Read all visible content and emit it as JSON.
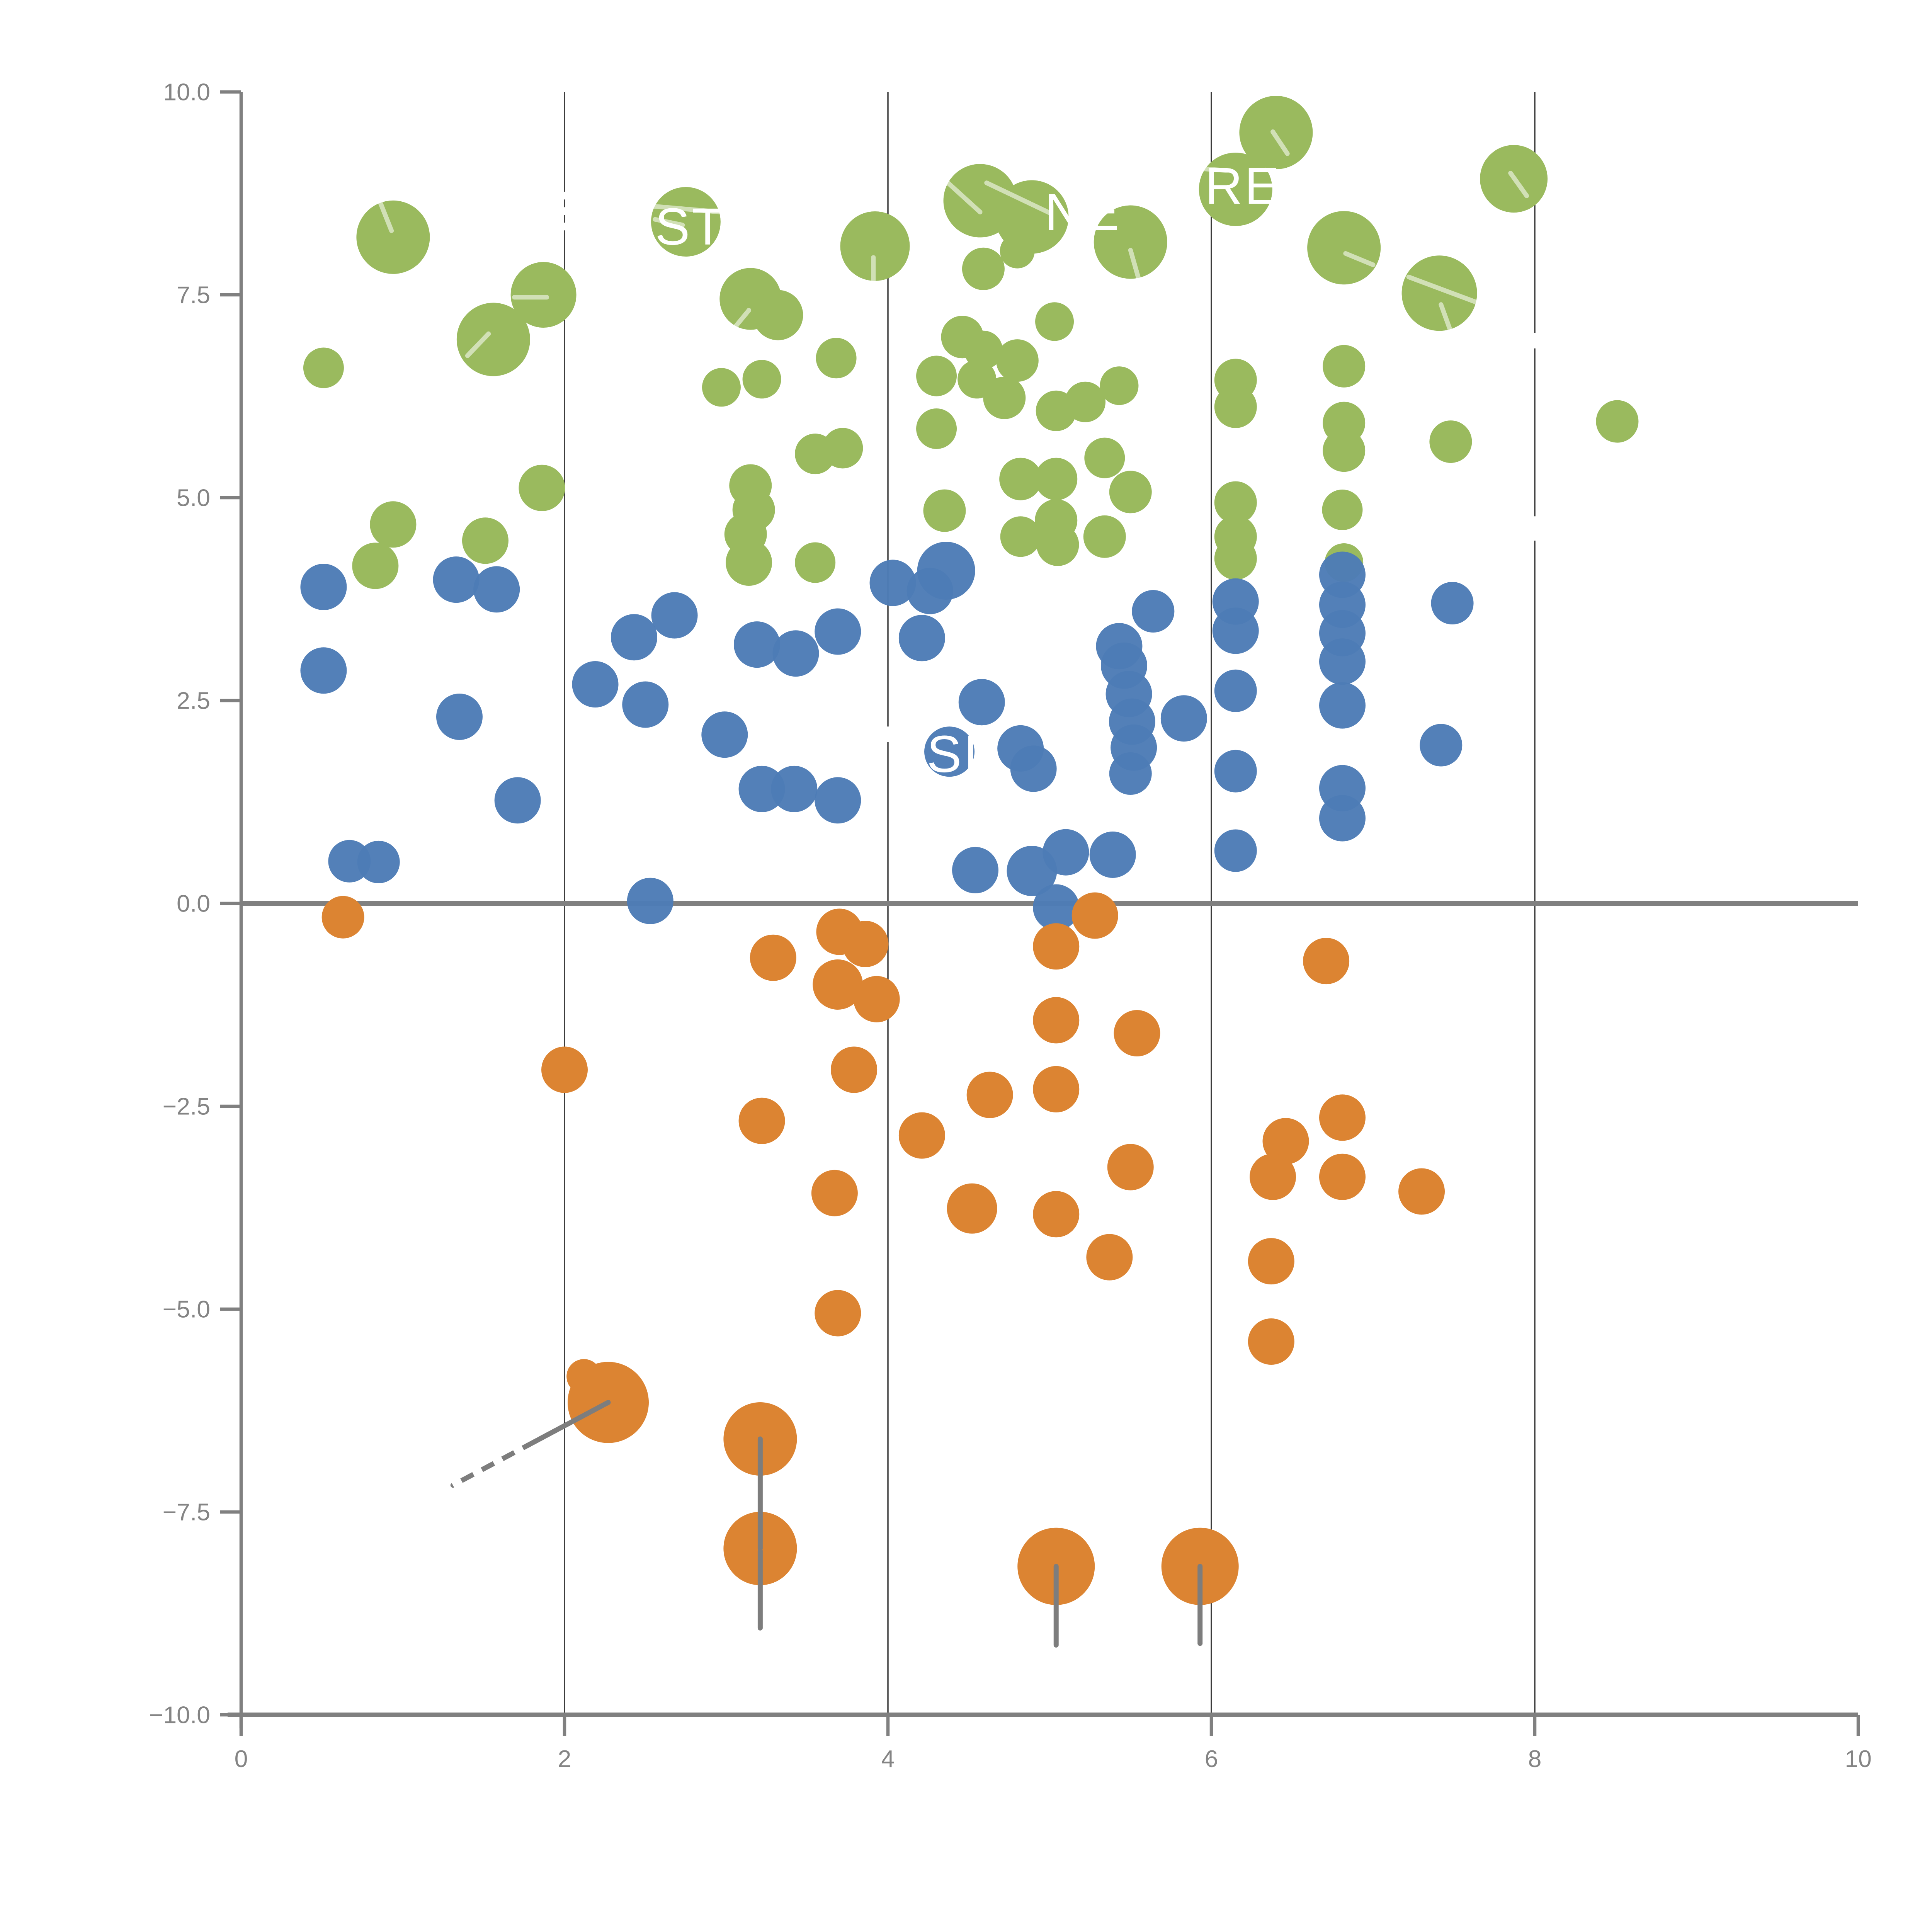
{
  "chart_data": {
    "type": "scatter",
    "title": "",
    "xlabel": "",
    "ylabel": "",
    "xlim": [
      0,
      10
    ],
    "ylim": [
      -10,
      10
    ],
    "grid": "vertical-only",
    "legend": "none",
    "x_ticks": [
      {
        "v": 0,
        "label": "0"
      },
      {
        "v": 2,
        "label": "2"
      },
      {
        "v": 4,
        "label": "4"
      },
      {
        "v": 6,
        "label": "6"
      },
      {
        "v": 8,
        "label": "8"
      },
      {
        "v": 10,
        "label": "10"
      }
    ],
    "y_ticks": [
      {
        "v": 10,
        "label": "10.0"
      },
      {
        "v": 7.5,
        "label": "7.5"
      },
      {
        "v": 5,
        "label": "5.0"
      },
      {
        "v": 2.5,
        "label": "2.5"
      },
      {
        "v": 0,
        "label": "0.0"
      },
      {
        "v": -2.5,
        "label": "−2.5"
      },
      {
        "v": -5,
        "label": "−5.0"
      },
      {
        "v": -7.5,
        "label": "−7.5"
      },
      {
        "v": -10,
        "label": "−10.0"
      }
    ],
    "gridline_xs": [
      2,
      4,
      6,
      8
    ],
    "zero_line_y": 0,
    "colors": {
      "green": "#9aba5e",
      "blue": "#4d7cb6",
      "orange": "#dc8432",
      "axis": "#808080",
      "grid": "#3c3c3c",
      "tick_label": "#848484",
      "annotation_text": "#ffffff",
      "leader_line": "#7d7d7d",
      "stripe": "#ffffff"
    },
    "series": [
      {
        "name": "green",
        "points": [
          [
            0.94,
            8.21,
            19
          ],
          [
            0.51,
            6.6,
            10.5
          ],
          [
            1.56,
            6.95,
            19
          ],
          [
            1.87,
            7.5,
            17
          ],
          [
            0.94,
            4.67,
            12
          ],
          [
            0.83,
            4.16,
            12
          ],
          [
            1.51,
            4.47,
            12
          ],
          [
            1.86,
            5.12,
            12
          ],
          [
            2.75,
            8.4,
            18
          ],
          [
            3.15,
            7.45,
            16
          ],
          [
            3.32,
            7.25,
            13
          ],
          [
            2.97,
            6.36,
            10
          ],
          [
            3.22,
            6.46,
            10
          ],
          [
            3.68,
            6.72,
            10.5
          ],
          [
            3.92,
            8.1,
            18
          ],
          [
            3.55,
            5.54,
            10.5
          ],
          [
            3.72,
            5.61,
            10.5
          ],
          [
            3.15,
            5.15,
            11
          ],
          [
            3.17,
            4.85,
            11
          ],
          [
            3.12,
            4.55,
            11
          ],
          [
            3.14,
            4.2,
            12
          ],
          [
            3.55,
            4.2,
            10.5
          ],
          [
            4.57,
            8.66,
            19
          ],
          [
            4.89,
            8.46,
            19
          ],
          [
            4.59,
            7.82,
            11
          ],
          [
            4.8,
            8.04,
            9
          ],
          [
            5.5,
            8.15,
            19
          ],
          [
            4.46,
            6.98,
            11
          ],
          [
            4.59,
            6.82,
            10
          ],
          [
            4.8,
            6.69,
            11
          ],
          [
            4.55,
            6.46,
            10
          ],
          [
            4.72,
            6.23,
            11
          ],
          [
            5.03,
            7.17,
            10
          ],
          [
            5.22,
            6.18,
            10.5
          ],
          [
            5.43,
            6.38,
            10
          ],
          [
            5.04,
            6.07,
            10.5
          ],
          [
            4.3,
            6.5,
            10.5
          ],
          [
            4.3,
            5.85,
            10.5
          ],
          [
            5.34,
            5.49,
            10.5
          ],
          [
            5.5,
            5.07,
            11
          ],
          [
            4.82,
            5.23,
            11
          ],
          [
            5.04,
            5.23,
            11
          ],
          [
            4.35,
            4.84,
            11
          ],
          [
            4.82,
            4.52,
            10.5
          ],
          [
            5.04,
            4.72,
            11
          ],
          [
            5.05,
            4.42,
            11
          ],
          [
            5.34,
            4.52,
            11
          ],
          [
            6.15,
            8.8,
            19
          ],
          [
            6.4,
            9.5,
            19
          ],
          [
            6.82,
            8.08,
            19
          ],
          [
            6.15,
            6.45,
            11
          ],
          [
            6.15,
            6.12,
            11
          ],
          [
            6.15,
            4.94,
            11
          ],
          [
            6.15,
            4.52,
            11
          ],
          [
            6.15,
            4.25,
            11
          ],
          [
            6.82,
            6.62,
            11
          ],
          [
            6.82,
            5.92,
            11
          ],
          [
            6.82,
            5.58,
            11
          ],
          [
            6.81,
            4.85,
            10.5
          ],
          [
            6.82,
            4.2,
            10
          ],
          [
            7.41,
            7.52,
            19.5
          ],
          [
            7.87,
            8.93,
            17.5
          ],
          [
            7.48,
            5.69,
            11
          ],
          [
            8.51,
            5.94,
            11
          ]
        ]
      },
      {
        "name": "blue",
        "points": [
          [
            0.51,
            3.9,
            12
          ],
          [
            0.51,
            2.87,
            12
          ],
          [
            0.67,
            0.52,
            11
          ],
          [
            0.85,
            0.51,
            11
          ],
          [
            1.33,
            3.99,
            12
          ],
          [
            1.58,
            3.87,
            12
          ],
          [
            1.35,
            2.3,
            12
          ],
          [
            1.71,
            1.27,
            12
          ],
          [
            2.19,
            2.7,
            12
          ],
          [
            2.43,
            3.28,
            12
          ],
          [
            2.5,
            2.45,
            12
          ],
          [
            2.53,
            0.03,
            12
          ],
          [
            2.68,
            3.55,
            12
          ],
          [
            2.99,
            2.08,
            12
          ],
          [
            3.19,
            3.19,
            12
          ],
          [
            3.43,
            3.08,
            12
          ],
          [
            3.69,
            3.35,
            12
          ],
          [
            3.22,
            1.41,
            12
          ],
          [
            3.42,
            1.41,
            12
          ],
          [
            3.69,
            1.27,
            12
          ],
          [
            4.03,
            3.95,
            12
          ],
          [
            4.21,
            3.27,
            12
          ],
          [
            4.36,
            4.1,
            15
          ],
          [
            4.26,
            3.85,
            12
          ],
          [
            4.38,
            1.87,
            13
          ],
          [
            4.58,
            2.48,
            12
          ],
          [
            4.82,
            1.91,
            12
          ],
          [
            4.9,
            1.66,
            12
          ],
          [
            4.54,
            0.41,
            12
          ],
          [
            4.89,
            0.4,
            13
          ],
          [
            5.1,
            0.63,
            12
          ],
          [
            5.39,
            0.6,
            12
          ],
          [
            5.04,
            -0.05,
            12
          ],
          [
            5.64,
            3.6,
            11
          ],
          [
            5.43,
            3.17,
            12
          ],
          [
            5.46,
            2.93,
            12
          ],
          [
            5.49,
            2.58,
            12
          ],
          [
            5.51,
            2.24,
            12
          ],
          [
            5.52,
            1.92,
            12
          ],
          [
            5.5,
            1.6,
            11
          ],
          [
            5.83,
            2.28,
            12
          ],
          [
            6.15,
            3.72,
            12
          ],
          [
            6.15,
            3.36,
            12
          ],
          [
            6.15,
            2.62,
            11
          ],
          [
            6.15,
            1.63,
            11
          ],
          [
            6.15,
            0.65,
            11
          ],
          [
            6.81,
            4.05,
            12
          ],
          [
            6.81,
            3.68,
            12
          ],
          [
            6.81,
            3.33,
            12
          ],
          [
            6.81,
            2.98,
            12
          ],
          [
            6.81,
            2.44,
            12
          ],
          [
            6.81,
            1.42,
            12
          ],
          [
            6.81,
            1.05,
            12
          ],
          [
            7.42,
            1.95,
            11
          ],
          [
            7.49,
            3.7,
            11
          ]
        ]
      },
      {
        "name": "orange",
        "points": [
          [
            0.63,
            -0.17,
            11
          ],
          [
            2.0,
            -2.05,
            12
          ],
          [
            3.29,
            -0.67,
            12
          ],
          [
            3.7,
            -0.35,
            12
          ],
          [
            3.86,
            -0.5,
            12
          ],
          [
            3.69,
            -1.0,
            13
          ],
          [
            3.93,
            -1.18,
            12
          ],
          [
            3.79,
            -2.05,
            12
          ],
          [
            3.22,
            -2.68,
            12
          ],
          [
            3.67,
            -3.57,
            12
          ],
          [
            4.21,
            -2.86,
            12
          ],
          [
            3.69,
            -5.05,
            12
          ],
          [
            4.63,
            -2.36,
            12
          ],
          [
            5.04,
            -2.29,
            12
          ],
          [
            5.04,
            -1.44,
            12
          ],
          [
            5.54,
            -1.6,
            12
          ],
          [
            5.28,
            -0.15,
            12
          ],
          [
            5.04,
            -0.53,
            12
          ],
          [
            4.52,
            -3.76,
            13
          ],
          [
            5.04,
            -3.83,
            12
          ],
          [
            5.37,
            -4.36,
            12
          ],
          [
            5.5,
            -3.25,
            12
          ],
          [
            6.71,
            -0.71,
            12
          ],
          [
            6.81,
            -2.64,
            12
          ],
          [
            6.46,
            -2.93,
            12
          ],
          [
            6.38,
            -3.37,
            12
          ],
          [
            6.81,
            -3.37,
            12
          ],
          [
            6.37,
            -4.41,
            12
          ],
          [
            6.37,
            -5.4,
            12
          ],
          [
            7.3,
            -3.55,
            12
          ],
          [
            2.12,
            -5.83,
            9
          ],
          [
            2.27,
            -6.15,
            21
          ],
          [
            3.21,
            -6.6,
            19
          ],
          [
            3.21,
            -7.95,
            19
          ],
          [
            5.04,
            -8.17,
            20
          ],
          [
            5.93,
            -8.17,
            20
          ]
        ]
      }
    ],
    "annotations": {
      "labels": [
        {
          "text": "ST",
          "x": 2.56,
          "y": 8.12
        },
        {
          "text": "NE",
          "x": 4.97,
          "y": 8.3
        },
        {
          "text": "RE",
          "x": 5.96,
          "y": 8.62
        },
        {
          "text": "SI",
          "x": 4.24,
          "y": 1.62
        }
      ],
      "leader_lines": [
        {
          "x1": 1.31,
          "y1": -7.17,
          "x2": 2.27,
          "y2": -6.15
        },
        {
          "x1": 3.21,
          "y1": -6.6,
          "x2": 3.21,
          "y2": -7.95
        },
        {
          "x1": 3.21,
          "y1": -7.98,
          "x2": 3.21,
          "y2": -8.93
        },
        {
          "x1": 5.04,
          "y1": -8.17,
          "x2": 5.04,
          "y2": -9.14
        },
        {
          "x1": 5.93,
          "y1": -8.17,
          "x2": 5.93,
          "y2": -9.12
        }
      ],
      "leader_dash_overlay": [
        {
          "x1": 1.31,
          "y1": -7.17,
          "x2": 1.8,
          "y2": -6.65
        }
      ],
      "stripes": [
        {
          "x1": 0.86,
          "y1": 8.64,
          "x2": 0.93,
          "y2": 8.29
        },
        {
          "x1": 1.69,
          "y1": 7.47,
          "x2": 1.89,
          "y2": 7.47
        },
        {
          "x1": 1.4,
          "y1": 6.75,
          "x2": 1.53,
          "y2": 7.02
        },
        {
          "x1": 2.33,
          "y1": 8.63,
          "x2": 3.08,
          "y2": 8.5
        },
        {
          "x1": 2.56,
          "y1": 8.43,
          "x2": 2.73,
          "y2": 8.36
        },
        {
          "x1": 3.02,
          "y1": 7.02,
          "x2": 3.14,
          "y2": 7.31
        },
        {
          "x1": 3.91,
          "y1": 7.96,
          "x2": 3.91,
          "y2": 7.57
        },
        {
          "x1": 4.36,
          "y1": 8.9,
          "x2": 4.57,
          "y2": 8.52
        },
        {
          "x1": 4.61,
          "y1": 8.88,
          "x2": 5.0,
          "y2": 8.51
        },
        {
          "x1": 5.5,
          "y1": 8.05,
          "x2": 5.56,
          "y2": 7.63
        },
        {
          "x1": 5.9,
          "y1": 9.06,
          "x2": 6.11,
          "y2": 9.03
        },
        {
          "x1": 6.38,
          "y1": 9.51,
          "x2": 6.47,
          "y2": 9.24
        },
        {
          "x1": 6.83,
          "y1": 8.01,
          "x2": 7.0,
          "y2": 7.87
        },
        {
          "x1": 7.22,
          "y1": 7.72,
          "x2": 7.65,
          "y2": 7.4
        },
        {
          "x1": 7.42,
          "y1": 7.38,
          "x2": 7.48,
          "y2": 7.05
        },
        {
          "x1": 7.85,
          "y1": 9.0,
          "x2": 7.95,
          "y2": 8.72
        }
      ],
      "grid_white_dashes": [
        {
          "x": 2,
          "y1": 8.77,
          "y2": 8.27,
          "dashed": true
        },
        {
          "x": 4,
          "y1": 2.18,
          "y2": 1.99,
          "dashed": false
        },
        {
          "x": 8,
          "y1": 7.03,
          "y2": 6.84,
          "dashed": false
        },
        {
          "x": 8,
          "y1": 4.77,
          "y2": 4.47,
          "dashed": false
        }
      ]
    }
  }
}
